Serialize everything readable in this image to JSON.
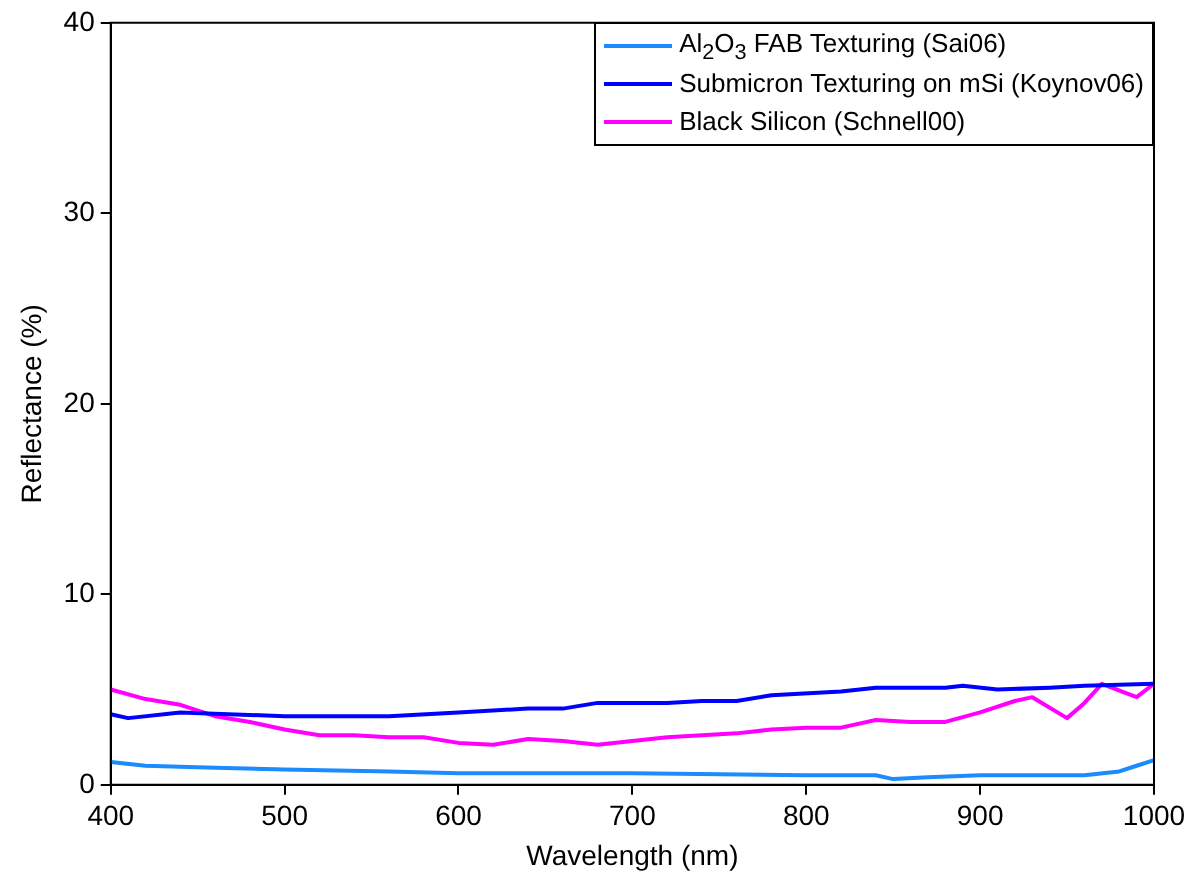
{
  "chart_data": {
    "type": "line",
    "xlabel": "Wavelength (nm)",
    "ylabel": "Reflectance (%)",
    "xlim": [
      400,
      1000
    ],
    "xticks": [
      400,
      500,
      600,
      700,
      800,
      900,
      1000
    ],
    "ylim": [
      0,
      40
    ],
    "yticks": [
      0,
      10,
      20,
      30,
      40
    ],
    "grid": false,
    "legend": "top right",
    "marker": "none",
    "line_style": "solid",
    "series": [
      {
        "name": "Al$_{2}$O$_{3}$ FAB Texturing (Sai06)",
        "color": "#1a8cff",
        "x": [
          400,
          420,
          460,
          500,
          560,
          600,
          700,
          800,
          840,
          850,
          870,
          900,
          960,
          980,
          990,
          1000
        ],
        "values": [
          1.2,
          1.0,
          0.9,
          0.8,
          0.7,
          0.6,
          0.6,
          0.5,
          0.5,
          0.3,
          0.4,
          0.5,
          0.5,
          0.7,
          1.0,
          1.3
        ]
      },
      {
        "name": "Submicron Texturing on mSi (Koynov06)",
        "color": "#0000ff",
        "x": [
          400,
          410,
          440,
          500,
          560,
          600,
          640,
          660,
          680,
          720,
          740,
          760,
          780,
          820,
          840,
          880,
          890,
          910,
          940,
          960,
          1000
        ],
        "values": [
          3.7,
          3.5,
          3.8,
          3.6,
          3.6,
          3.8,
          4.0,
          4.0,
          4.3,
          4.3,
          4.4,
          4.4,
          4.7,
          4.9,
          5.1,
          5.1,
          5.2,
          5.0,
          5.1,
          5.2,
          5.3
        ]
      },
      {
        "name": "Black Silicon (Schnell00)",
        "color": "#ff00ff",
        "x": [
          400,
          420,
          440,
          460,
          480,
          500,
          520,
          540,
          560,
          580,
          600,
          620,
          640,
          660,
          680,
          700,
          720,
          740,
          760,
          780,
          800,
          820,
          840,
          860,
          880,
          900,
          920,
          930,
          950,
          960,
          970,
          990,
          1000
        ],
        "values": [
          5.0,
          4.5,
          4.2,
          3.6,
          3.3,
          2.9,
          2.6,
          2.6,
          2.5,
          2.5,
          2.2,
          2.1,
          2.4,
          2.3,
          2.1,
          2.3,
          2.5,
          2.6,
          2.7,
          2.9,
          3.0,
          3.0,
          3.4,
          3.3,
          3.3,
          3.8,
          4.4,
          4.6,
          3.5,
          4.3,
          5.3,
          4.6,
          5.3
        ]
      }
    ]
  }
}
